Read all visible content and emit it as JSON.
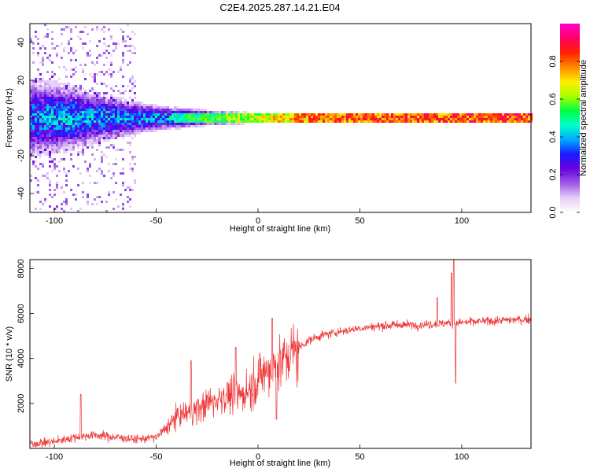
{
  "chart_data": [
    {
      "type": "heatmap",
      "title": "C2E4.2025.287.14.21.E04",
      "xlabel": "Height of straight line (km)",
      "ylabel": "Frequency (Hz)",
      "xlim": [
        -112,
        134
      ],
      "ylim": [
        -50,
        50
      ],
      "xticks": [
        -100,
        -50,
        0,
        50,
        100
      ],
      "xtick_labels": [
        "-100",
        "-50",
        "0",
        "50",
        "100"
      ],
      "yticks": [
        -40,
        -20,
        0,
        20,
        40
      ],
      "ytick_labels": [
        "-40",
        "-20",
        "0",
        "20",
        "40"
      ],
      "colorbar": {
        "label": "Normalized spectral amplitude",
        "range": [
          0,
          1
        ],
        "ticks": [
          0.0,
          0.2,
          0.4,
          0.6,
          0.8
        ],
        "tick_labels": [
          "0.0",
          "0.2",
          "0.4",
          "0.6",
          "0.8"
        ],
        "colormap": [
          "#ffffff",
          "#e6cdf7",
          "#9c5ae8",
          "#6a00e0",
          "#1a1aff",
          "#00aaff",
          "#00ffcc",
          "#00ff44",
          "#aaff00",
          "#ffee00",
          "#ff8800",
          "#ff2200",
          "#ff0066",
          "#ff00cc"
        ]
      },
      "description_series": {
        "name": "carrier band near 0 Hz",
        "x": [
          -112,
          -100,
          -75,
          -50,
          -25,
          0,
          25,
          50,
          75,
          100,
          125,
          134
        ],
        "bandwidth_hz": [
          45,
          40,
          25,
          14,
          8,
          5,
          4,
          4,
          4,
          4,
          4,
          4
        ],
        "peak_amplitude": [
          0.4,
          0.45,
          0.45,
          0.45,
          0.6,
          0.7,
          0.85,
          0.9,
          0.88,
          0.9,
          0.92,
          0.9
        ]
      }
    },
    {
      "type": "line",
      "title": "",
      "xlabel": "Height of straight line (km)",
      "ylabel": "SNR (10 * v/v)",
      "xlim": [
        -112,
        134
      ],
      "ylim": [
        0,
        8400
      ],
      "xticks": [
        -100,
        -50,
        0,
        50,
        100
      ],
      "xtick_labels": [
        "-100",
        "-50",
        "0",
        "50",
        "100"
      ],
      "yticks": [
        2000,
        4000,
        6000,
        8000
      ],
      "ytick_labels": [
        "2000",
        "4000",
        "6000",
        "8000"
      ],
      "color": "#ee3333",
      "series": [
        {
          "name": "SNR",
          "x": [
            -112,
            -100,
            -90,
            -80,
            -70,
            -60,
            -50,
            -45,
            -40,
            -35,
            -30,
            -25,
            -20,
            -15,
            -10,
            -5,
            0,
            5,
            10,
            15,
            20,
            25,
            30,
            40,
            50,
            60,
            70,
            80,
            90,
            95,
            97,
            100,
            110,
            120,
            134
          ],
          "y": [
            200,
            300,
            500,
            600,
            500,
            400,
            500,
            900,
            1400,
            1600,
            1700,
            2000,
            2200,
            2400,
            2300,
            2600,
            3100,
            3500,
            3700,
            4100,
            4500,
            4800,
            5000,
            5200,
            5350,
            5450,
            5500,
            5500,
            5550,
            5600,
            5550,
            5600,
            5650,
            5700,
            5750
          ]
        }
      ],
      "spikes": [
        {
          "x": -87,
          "y": 2400
        },
        {
          "x": -33,
          "y": 3900
        },
        {
          "x": -11,
          "y": 4500
        },
        {
          "x": 7,
          "y": 5800
        },
        {
          "x": 9,
          "y": 1300
        },
        {
          "x": 88,
          "y": 6700
        },
        {
          "x": 95,
          "y": 7800
        },
        {
          "x": 96,
          "y": 8400
        },
        {
          "x": 97,
          "y": 2900
        }
      ]
    }
  ]
}
